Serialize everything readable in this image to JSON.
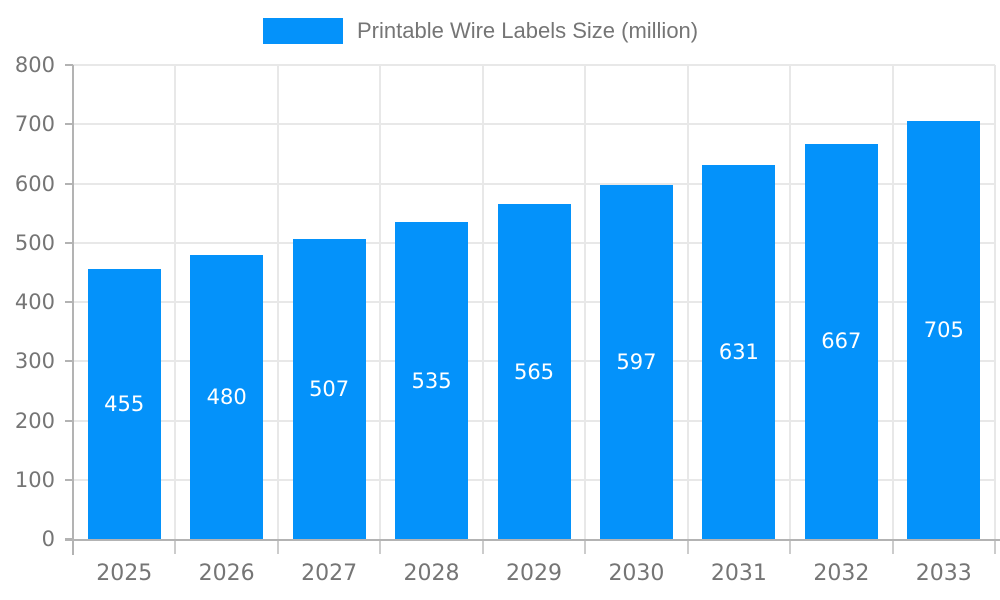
{
  "legend": {
    "label": "Printable Wire Labels Size (million)"
  },
  "chart_data": {
    "type": "bar",
    "title": "Printable Wire Labels Size (million)",
    "categories": [
      "2025",
      "2026",
      "2027",
      "2028",
      "2029",
      "2030",
      "2031",
      "2032",
      "2033"
    ],
    "values": [
      455,
      480,
      507,
      535,
      565,
      597,
      631,
      667,
      705
    ],
    "xlabel": "",
    "ylabel": "",
    "ylim": [
      0,
      800
    ],
    "yticks": [
      0,
      100,
      200,
      300,
      400,
      500,
      600,
      700,
      800
    ],
    "grid": true,
    "legend_position": "top-center",
    "data_labels_position": "inside-middle",
    "colors": {
      "bar": "#0492fa",
      "data_label_text": "#ffffff",
      "axis_text": "#757575",
      "legend_text": "#757575",
      "gridline": "#e8e8e8",
      "axis_line": "#b3b3b3",
      "boundary_tick": "#cccccc",
      "background": "#ffffff"
    }
  }
}
